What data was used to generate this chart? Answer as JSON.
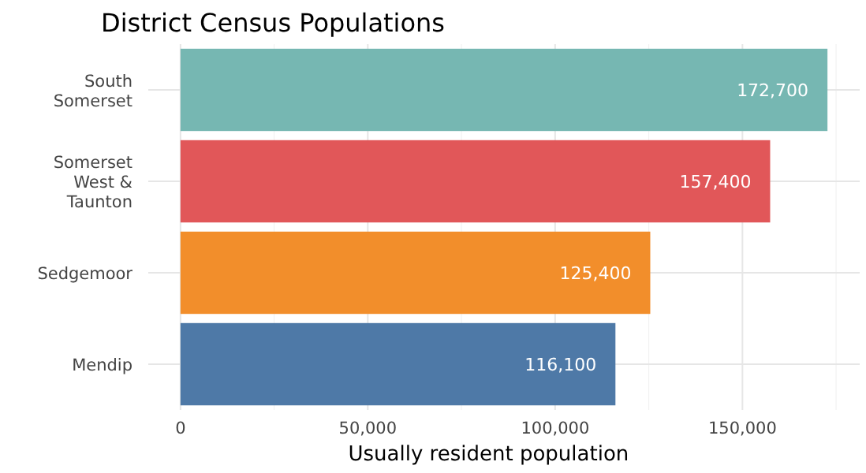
{
  "chart_data": {
    "type": "bar",
    "orientation": "horizontal",
    "title": "District Census Populations",
    "xlabel": "Usually resident population",
    "categories": [
      "South Somerset",
      "Somerset West & Taunton",
      "Sedgemoor",
      "Mendip"
    ],
    "values": [
      172700,
      157400,
      125400,
      116100
    ],
    "colors": [
      "#76b7b2",
      "#e15759",
      "#f28e2b",
      "#4e79a7"
    ],
    "xlim": [
      -8600,
      181300
    ],
    "value_labels": [
      "172,700",
      "157,400",
      "125,400",
      "116,100"
    ],
    "xticks": [
      0,
      {
        "value": 25000,
        "label": null
      },
      {
        "value": 50000,
        "label": "50,000"
      },
      {
        "value": 75000,
        "label": null
      },
      {
        "value": 100000,
        "label": "100,000"
      },
      {
        "value": 125000,
        "label": null
      },
      {
        "value": 150000,
        "label": "150,000"
      },
      {
        "value": 175000,
        "label": null
      }
    ],
    "grid": true
  }
}
